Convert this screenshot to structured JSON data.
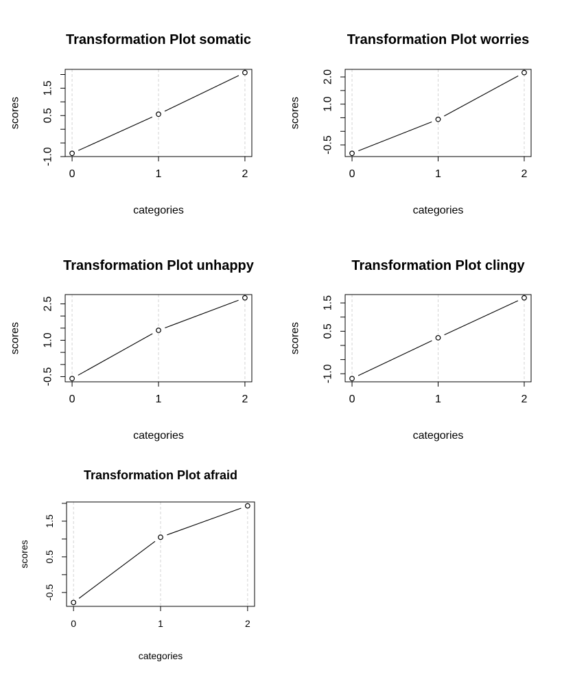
{
  "chart_data": [
    {
      "type": "line",
      "title": "Transformation Plot somatic",
      "xlabel": "categories",
      "ylabel": "scores",
      "x": [
        0,
        1,
        2
      ],
      "y": [
        -0.88,
        0.55,
        2.07
      ],
      "xticks": [
        0,
        1,
        2
      ],
      "yticks": [
        -1.0,
        -0.5,
        0.0,
        0.5,
        1.0,
        1.5,
        2.0
      ],
      "ytick_labels": [
        "-1.0",
        "",
        "",
        "0.5",
        "",
        "1.5",
        ""
      ],
      "xgrid": "dashed",
      "colors": {
        "line": "#000000",
        "grid": "#d3d3d3"
      }
    },
    {
      "type": "line",
      "title": "Transformation Plot worries",
      "xlabel": "categories",
      "ylabel": "scores",
      "x": [
        0,
        1,
        2
      ],
      "y": [
        -0.81,
        0.44,
        2.16
      ],
      "xticks": [
        0,
        1,
        2
      ],
      "yticks": [
        -0.5,
        0.0,
        0.5,
        1.0,
        1.5,
        2.0
      ],
      "ytick_labels": [
        "-0.5",
        "",
        "",
        "1.0",
        "",
        "2.0"
      ],
      "xgrid": "dashed",
      "colors": {
        "line": "#000000",
        "grid": "#d3d3d3"
      }
    },
    {
      "type": "line",
      "title": "Transformation Plot unhappy",
      "xlabel": "categories",
      "ylabel": "scores",
      "x": [
        0,
        1,
        2
      ],
      "y": [
        -0.58,
        1.41,
        2.75
      ],
      "xticks": [
        0,
        1,
        2
      ],
      "yticks": [
        -0.5,
        0.0,
        0.5,
        1.0,
        1.5,
        2.0,
        2.5
      ],
      "ytick_labels": [
        "-0.5",
        "",
        "",
        "1.0",
        "",
        "",
        "2.5"
      ],
      "xgrid": "dashed",
      "colors": {
        "line": "#000000",
        "grid": "#d3d3d3"
      }
    },
    {
      "type": "line",
      "title": "Transformation Plot clingy",
      "xlabel": "categories",
      "ylabel": "scores",
      "x": [
        0,
        1,
        2
      ],
      "y": [
        -1.17,
        0.27,
        1.68
      ],
      "xticks": [
        0,
        1,
        2
      ],
      "yticks": [
        -1.0,
        -0.5,
        0.0,
        0.5,
        1.0,
        1.5
      ],
      "ytick_labels": [
        "-1.0",
        "",
        "",
        "0.5",
        "",
        "1.5"
      ],
      "xgrid": "dashed",
      "colors": {
        "line": "#000000",
        "grid": "#d3d3d3"
      }
    },
    {
      "type": "line",
      "title": "Transformation Plot afraid",
      "xlabel": "categories",
      "ylabel": "scores",
      "x": [
        0,
        1,
        2
      ],
      "y": [
        -0.78,
        1.05,
        1.93
      ],
      "xticks": [
        0,
        1,
        2
      ],
      "yticks": [
        -0.5,
        0.0,
        0.5,
        1.0,
        1.5,
        2.0
      ],
      "ytick_labels": [
        "-0.5",
        "",
        "0.5",
        "",
        "1.5",
        ""
      ],
      "xgrid": "dashed",
      "colors": {
        "line": "#000000",
        "grid": "#d3d3d3"
      }
    }
  ]
}
